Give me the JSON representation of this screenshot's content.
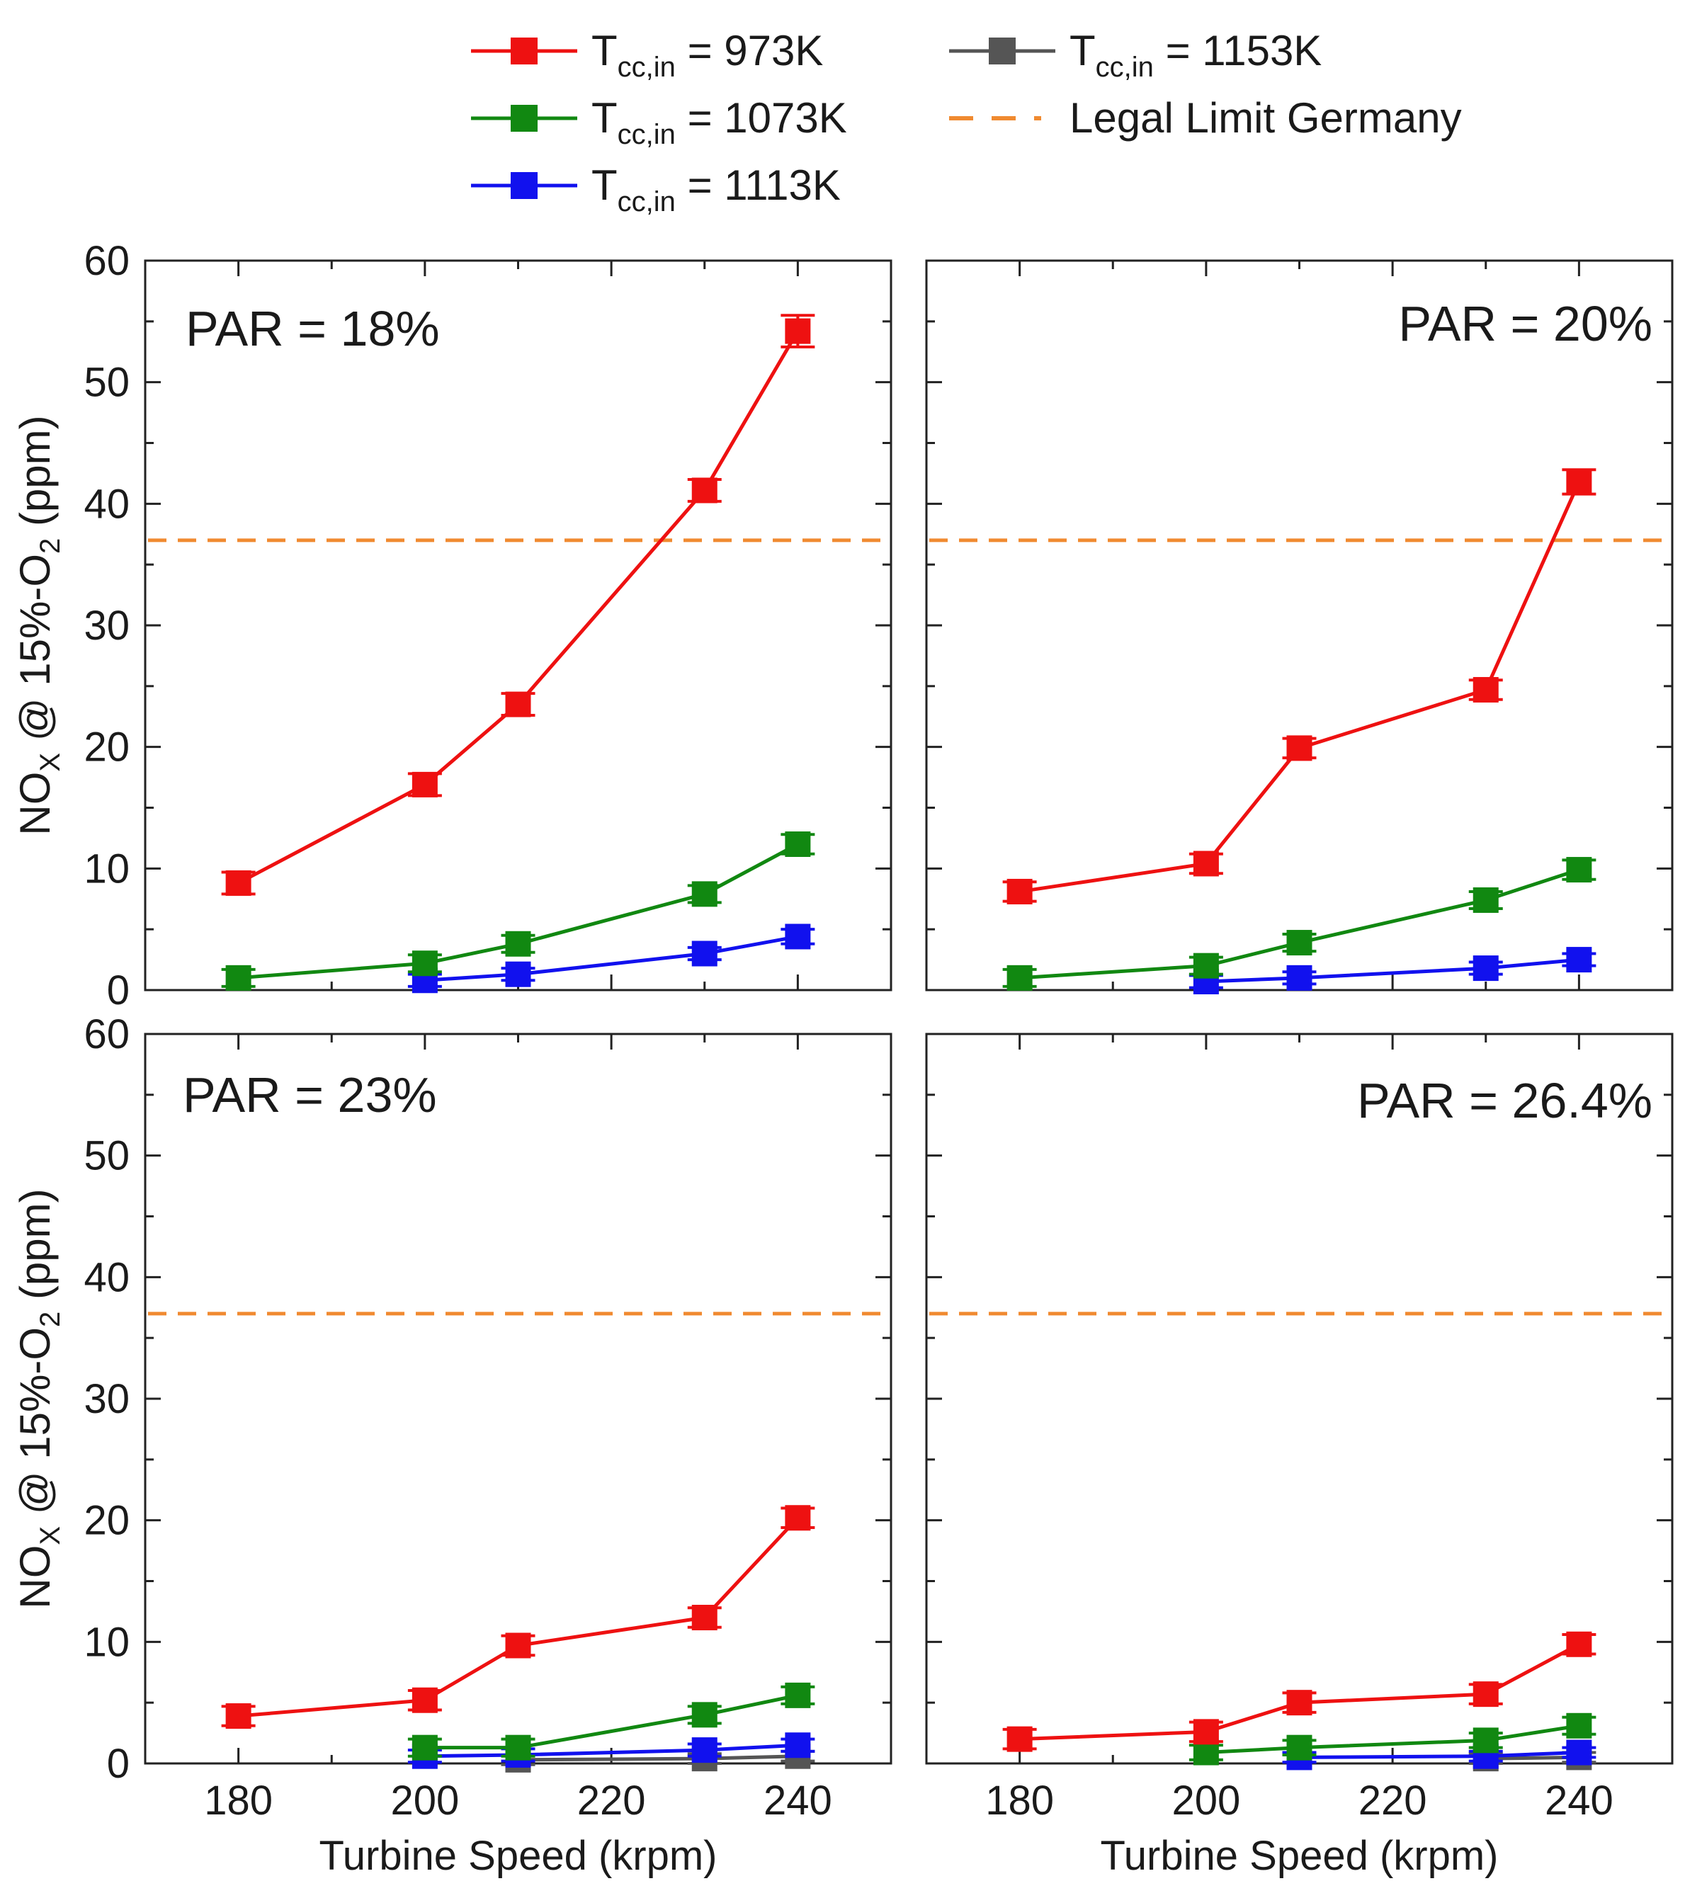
{
  "legend": {
    "entries": [
      {
        "prefix": "T",
        "sub": "cc,in",
        "suffix": " =   973K",
        "color": "#ee1111",
        "marker": "square-icon",
        "style": "solid"
      },
      {
        "prefix": "T",
        "sub": "cc,in",
        "suffix": " = 1073K",
        "color": "#118811",
        "marker": "square-icon",
        "style": "solid"
      },
      {
        "prefix": "T",
        "sub": "cc,in",
        "suffix": " = 1113K",
        "color": "#1111ee",
        "marker": "square-icon",
        "style": "solid"
      },
      {
        "prefix": "T",
        "sub": "cc,in",
        "suffix": " = 1153K",
        "color": "#555555",
        "marker": "square-icon",
        "style": "solid"
      },
      {
        "prefix": "Legal Limit Germany",
        "sub": "",
        "suffix": "",
        "color": "#f08a30",
        "marker": "",
        "style": "dashed"
      }
    ]
  },
  "axis_labels": {
    "y_main": "NO",
    "y_sub1": "X",
    "y_mid": " @ 15%-O",
    "y_sub2": "2",
    "y_end": " (ppm)",
    "x": "Turbine Speed (krpm)"
  },
  "chart_data": [
    {
      "type": "line",
      "annotation": "PAR = 18%",
      "xlim": [
        170,
        250
      ],
      "ylim": [
        0,
        60
      ],
      "xticks": [
        180,
        200,
        220,
        240
      ],
      "yticks": [
        0,
        10,
        20,
        30,
        40,
        50,
        60
      ],
      "legal_limit": 37,
      "series": [
        {
          "name": "973K",
          "color": "#ee1111",
          "x": [
            180,
            200,
            210,
            230,
            240
          ],
          "y": [
            8.8,
            16.9,
            23.5,
            41.1,
            54.2
          ],
          "err": [
            0.9,
            0.9,
            0.9,
            0.9,
            1.3
          ]
        },
        {
          "name": "1073K",
          "color": "#118811",
          "x": [
            180,
            200,
            210,
            230,
            240
          ],
          "y": [
            1.0,
            2.2,
            3.8,
            7.9,
            12.0
          ],
          "err": [
            0.7,
            0.7,
            0.7,
            0.7,
            0.8
          ]
        },
        {
          "name": "1113K",
          "color": "#1111ee",
          "x": [
            200,
            210,
            230,
            240
          ],
          "y": [
            0.8,
            1.3,
            3.0,
            4.4
          ],
          "err": [
            0.5,
            0.5,
            0.5,
            0.6
          ]
        },
        {
          "name": "1153K",
          "color": "#555555",
          "x": [],
          "y": [],
          "err": []
        }
      ]
    },
    {
      "type": "line",
      "annotation": "PAR = 20%",
      "xlim": [
        170,
        250
      ],
      "ylim": [
        0,
        60
      ],
      "xticks": [
        180,
        200,
        220,
        240
      ],
      "yticks": [
        0,
        10,
        20,
        30,
        40,
        50,
        60
      ],
      "legal_limit": 37,
      "series": [
        {
          "name": "973K",
          "color": "#ee1111",
          "x": [
            180,
            200,
            210,
            230,
            240
          ],
          "y": [
            8.1,
            10.4,
            19.9,
            24.7,
            41.8
          ],
          "err": [
            0.8,
            0.8,
            0.8,
            0.8,
            1.0
          ]
        },
        {
          "name": "1073K",
          "color": "#118811",
          "x": [
            180,
            200,
            210,
            230,
            240
          ],
          "y": [
            1.0,
            2.0,
            3.9,
            7.4,
            9.9
          ],
          "err": [
            0.7,
            0.7,
            0.7,
            0.7,
            0.8
          ]
        },
        {
          "name": "1113K",
          "color": "#1111ee",
          "x": [
            200,
            210,
            230,
            240
          ],
          "y": [
            0.7,
            1.0,
            1.8,
            2.5
          ],
          "err": [
            0.5,
            0.5,
            0.5,
            0.5
          ]
        },
        {
          "name": "1153K",
          "color": "#555555",
          "x": [],
          "y": [],
          "err": []
        }
      ]
    },
    {
      "type": "line",
      "annotation": "PAR = 23%",
      "xlim": [
        170,
        250
      ],
      "ylim": [
        0,
        60
      ],
      "xticks": [
        180,
        200,
        220,
        240
      ],
      "yticks": [
        0,
        10,
        20,
        30,
        40,
        50,
        60
      ],
      "legal_limit": 37,
      "series": [
        {
          "name": "973K",
          "color": "#ee1111",
          "x": [
            180,
            200,
            210,
            230,
            240
          ],
          "y": [
            3.9,
            5.2,
            9.7,
            12.0,
            20.2
          ],
          "err": [
            0.8,
            0.8,
            0.8,
            0.8,
            0.8
          ]
        },
        {
          "name": "1073K",
          "color": "#118811",
          "x": [
            200,
            210,
            230,
            240
          ],
          "y": [
            1.3,
            1.3,
            4.0,
            5.6
          ],
          "err": [
            0.7,
            0.7,
            0.7,
            0.7
          ]
        },
        {
          "name": "1113K",
          "color": "#1111ee",
          "x": [
            200,
            210,
            230,
            240
          ],
          "y": [
            0.6,
            0.7,
            1.1,
            1.5
          ],
          "err": [
            0.5,
            0.5,
            0.5,
            0.5
          ]
        },
        {
          "name": "1153K",
          "color": "#555555",
          "x": [
            210,
            230,
            240
          ],
          "y": [
            0.3,
            0.4,
            0.6
          ],
          "err": [
            0.4,
            0.4,
            0.4
          ]
        }
      ]
    },
    {
      "type": "line",
      "annotation": "PAR = 26.4%",
      "xlim": [
        170,
        250
      ],
      "ylim": [
        0,
        60
      ],
      "xticks": [
        180,
        200,
        220,
        240
      ],
      "yticks": [
        0,
        10,
        20,
        30,
        40,
        50,
        60
      ],
      "legal_limit": 37,
      "series": [
        {
          "name": "973K",
          "color": "#ee1111",
          "x": [
            180,
            200,
            210,
            230,
            240
          ],
          "y": [
            2.0,
            2.6,
            5.0,
            5.7,
            9.8
          ],
          "err": [
            0.8,
            0.8,
            0.8,
            0.8,
            0.8
          ]
        },
        {
          "name": "1073K",
          "color": "#118811",
          "x": [
            200,
            210,
            230,
            240
          ],
          "y": [
            0.9,
            1.3,
            1.9,
            3.1
          ],
          "err": [
            0.6,
            0.6,
            0.6,
            0.7
          ]
        },
        {
          "name": "1113K",
          "color": "#1111ee",
          "x": [
            210,
            230,
            240
          ],
          "y": [
            0.5,
            0.6,
            0.9
          ],
          "err": [
            0.4,
            0.4,
            0.4
          ]
        },
        {
          "name": "1153K",
          "color": "#555555",
          "x": [
            230,
            240
          ],
          "y": [
            0.4,
            0.5
          ],
          "err": [
            0.4,
            0.4
          ]
        }
      ]
    }
  ]
}
